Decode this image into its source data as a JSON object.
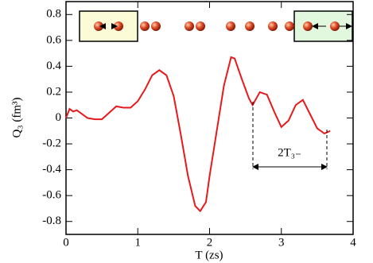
{
  "chart_data": {
    "type": "line",
    "xlabel": "T (zs)",
    "ylabel": "Q₃ (fm³)",
    "annotation": "2T₃₋",
    "xlim": [
      0,
      4
    ],
    "ylim": [
      -0.9,
      0.9
    ],
    "xticks": [
      0,
      1,
      2,
      3,
      4
    ],
    "yticks": [
      -0.8,
      -0.6,
      -0.4,
      -0.2,
      0,
      0.2,
      0.4,
      0.6,
      0.8
    ],
    "series": [
      {
        "color": "#e8191c",
        "x": [
          0,
          0.05,
          0.1,
          0.15,
          0.2,
          0.3,
          0.4,
          0.5,
          0.6,
          0.7,
          0.8,
          0.9,
          1.0,
          1.1,
          1.2,
          1.3,
          1.4,
          1.5,
          1.6,
          1.7,
          1.8,
          1.87,
          1.95,
          2.0,
          2.1,
          2.2,
          2.3,
          2.35,
          2.45,
          2.55,
          2.6,
          2.7,
          2.8,
          2.9,
          3.0,
          3.1,
          3.2,
          3.3,
          3.4,
          3.5,
          3.6,
          3.68
        ],
        "values": [
          0,
          0.07,
          0.05,
          0.06,
          0.04,
          0.0,
          -0.01,
          -0.01,
          0.04,
          0.09,
          0.08,
          0.08,
          0.13,
          0.22,
          0.33,
          0.37,
          0.33,
          0.17,
          -0.13,
          -0.45,
          -0.68,
          -0.72,
          -0.65,
          -0.45,
          -0.1,
          0.25,
          0.47,
          0.46,
          0.3,
          0.15,
          0.1,
          0.2,
          0.18,
          0.05,
          -0.07,
          -0.02,
          0.1,
          0.14,
          0.03,
          -0.08,
          -0.12,
          -0.1
        ]
      }
    ]
  }
}
